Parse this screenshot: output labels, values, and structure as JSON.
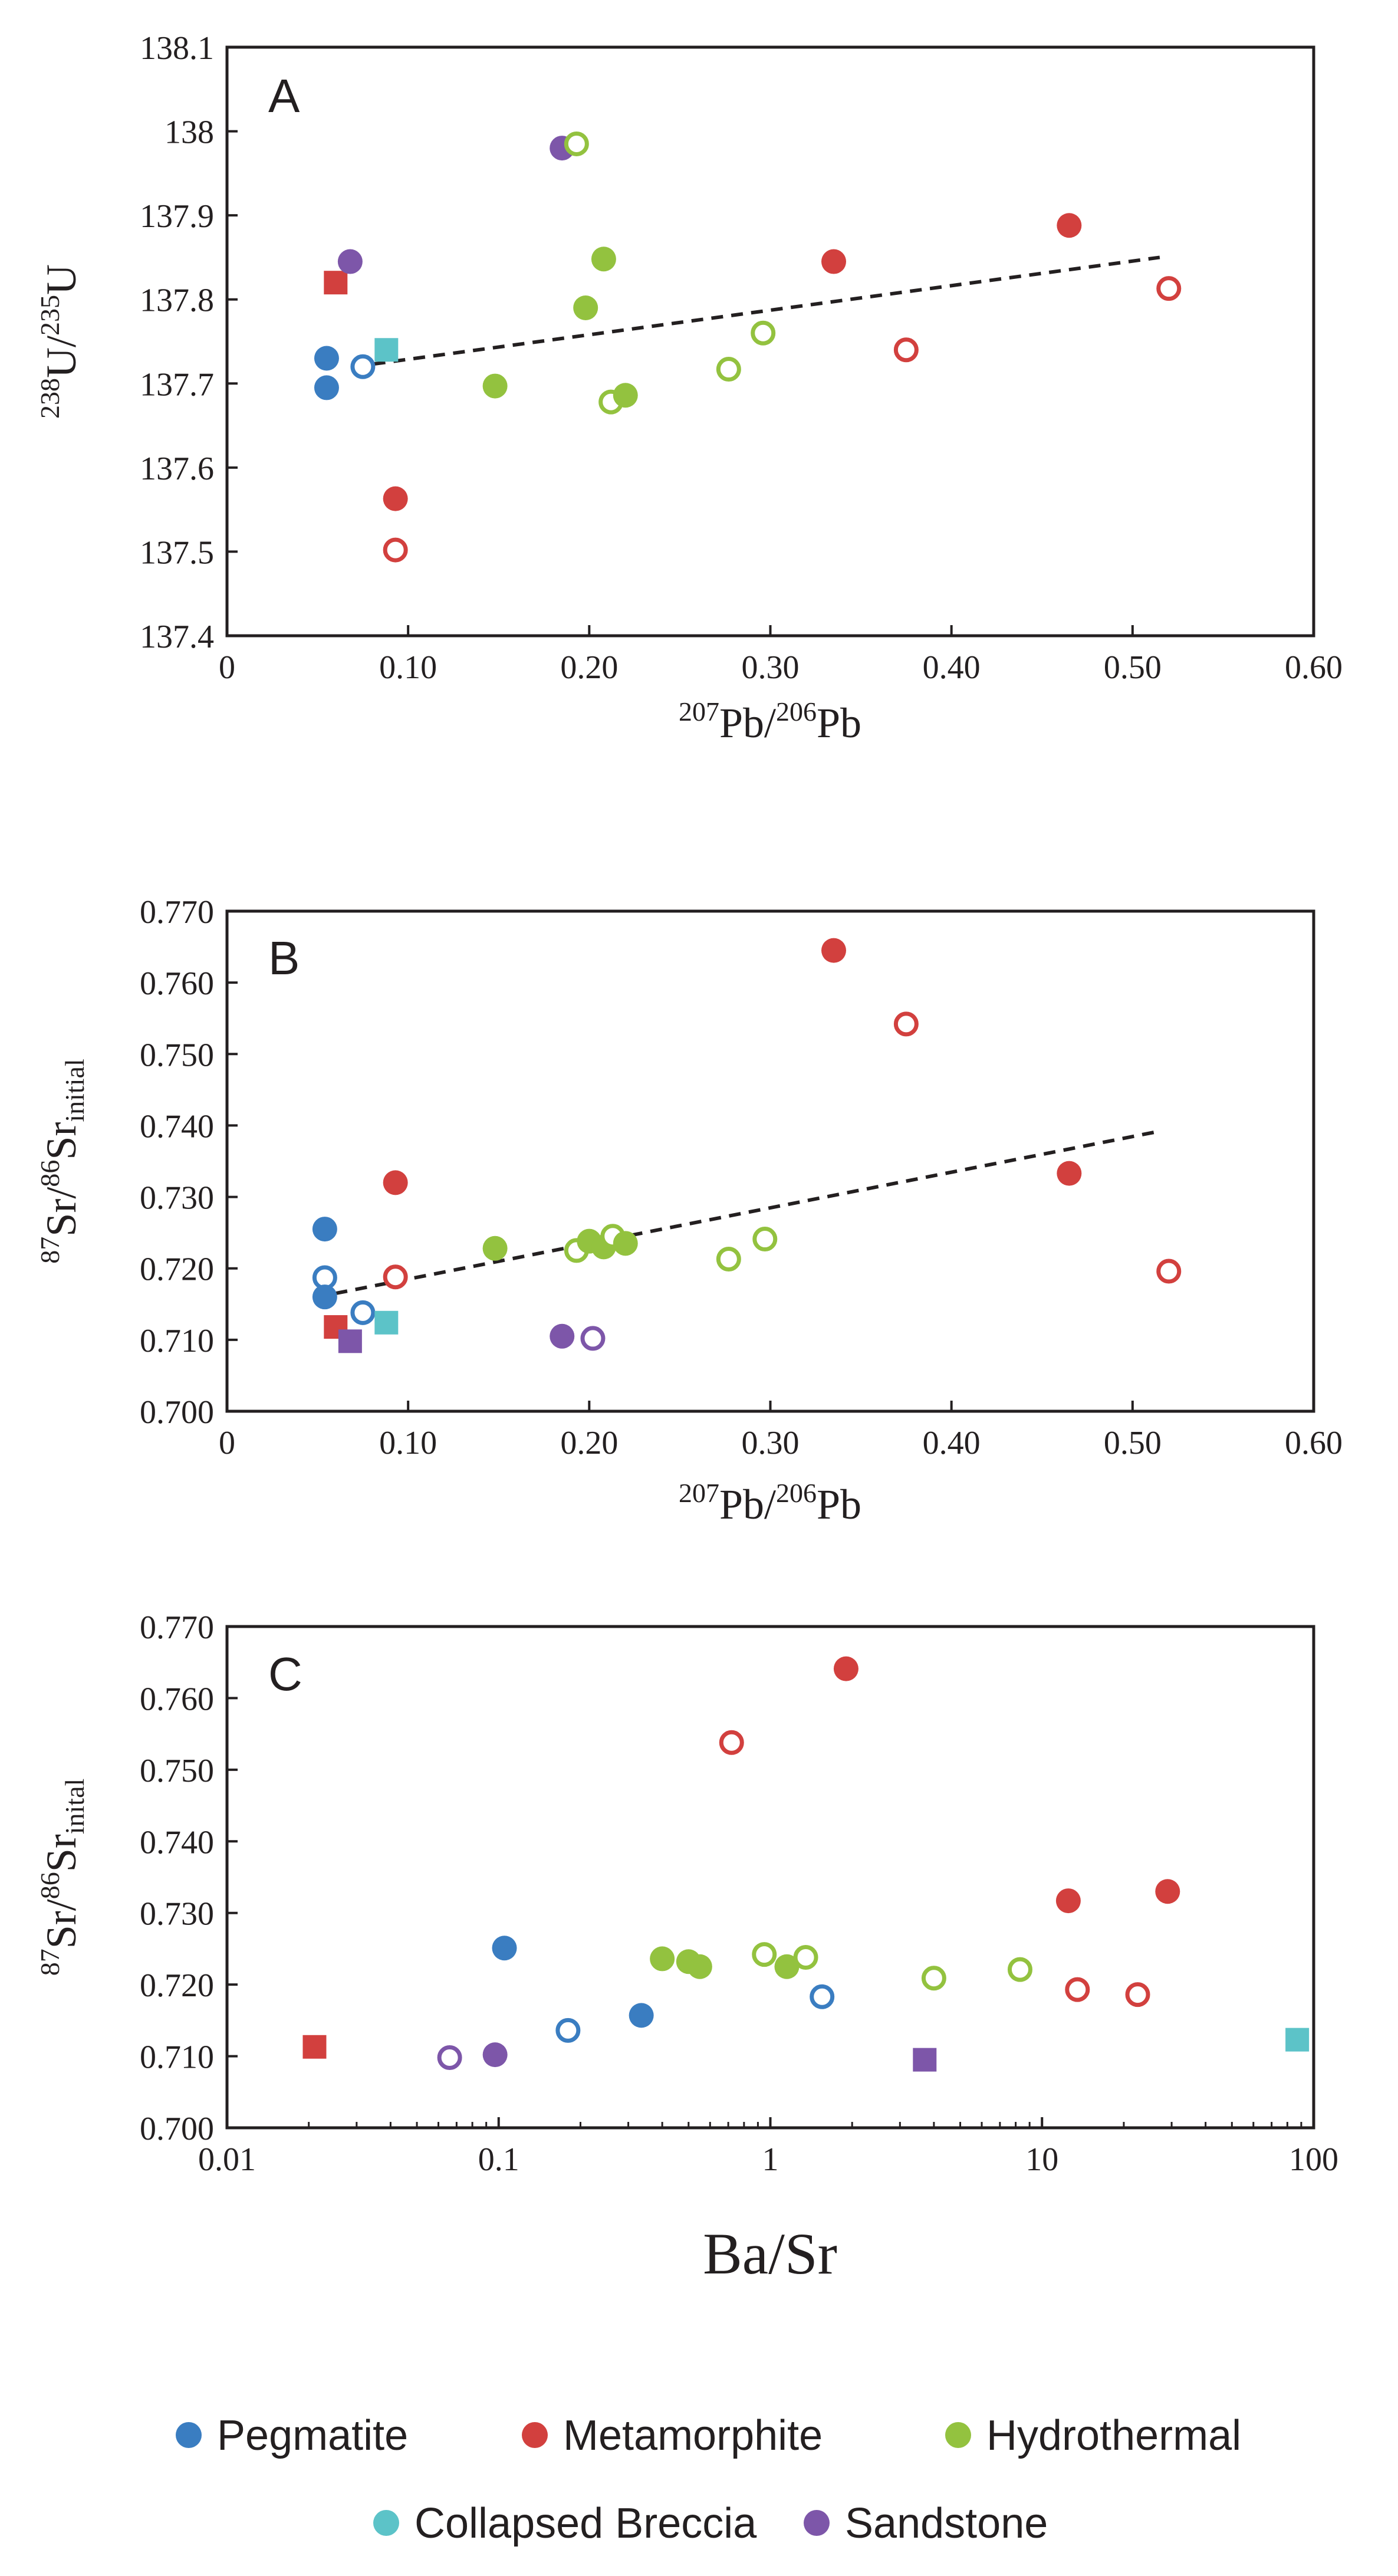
{
  "colors": {
    "pegmatite": "#3a7dc1",
    "metamorphite": "#d2403e",
    "hydrothermal": "#93c23f",
    "collapsed_breccia": "#5cc3c8",
    "sandstone": "#7d56a9"
  },
  "legend": [
    {
      "key": "pegmatite",
      "label": "Pegmatite"
    },
    {
      "key": "metamorphite",
      "label": "Metamorphite"
    },
    {
      "key": "hydrothermal",
      "label": "Hydrothermal"
    },
    {
      "key": "collapsed_breccia",
      "label": "Collapsed Breccia"
    },
    {
      "key": "sandstone",
      "label": "Sandstone"
    }
  ],
  "chart_data": [
    {
      "panel": "A",
      "type": "scatter",
      "xscale": "linear",
      "xlim": [
        0,
        0.6
      ],
      "ylim": [
        137.4,
        138.1
      ],
      "xticks": [
        "0",
        "0.10",
        "0.20",
        "0.30",
        "0.40",
        "0.50",
        "0.60"
      ],
      "yticks": [
        "137.4",
        "137.5",
        "137.6",
        "137.7",
        "137.8",
        "137.9",
        "138",
        "138.1"
      ],
      "xlabel": {
        "sup1": "207",
        "base1": "Pb/",
        "sup2": "206",
        "base2": "Pb"
      },
      "ylabel": {
        "sup1": "238",
        "base1": "U/",
        "sup2": "235",
        "base2": "U"
      },
      "trendline": {
        "x": [
          0.07,
          0.515
        ],
        "y": [
          137.72,
          137.85
        ]
      },
      "points": [
        {
          "series": "pegmatite",
          "shape": "circle",
          "filled": true,
          "x": 0.055,
          "y": 137.73
        },
        {
          "series": "pegmatite",
          "shape": "circle",
          "filled": true,
          "x": 0.055,
          "y": 137.695
        },
        {
          "series": "pegmatite",
          "shape": "circle",
          "filled": false,
          "x": 0.075,
          "y": 137.72
        },
        {
          "series": "metamorphite",
          "shape": "square",
          "filled": true,
          "x": 0.06,
          "y": 137.82
        },
        {
          "series": "metamorphite",
          "shape": "circle",
          "filled": true,
          "x": 0.093,
          "y": 137.563
        },
        {
          "series": "metamorphite",
          "shape": "circle",
          "filled": false,
          "x": 0.093,
          "y": 137.502
        },
        {
          "series": "metamorphite",
          "shape": "circle",
          "filled": true,
          "x": 0.335,
          "y": 137.845
        },
        {
          "series": "metamorphite",
          "shape": "circle",
          "filled": false,
          "x": 0.375,
          "y": 137.74
        },
        {
          "series": "metamorphite",
          "shape": "circle",
          "filled": true,
          "x": 0.465,
          "y": 137.888
        },
        {
          "series": "metamorphite",
          "shape": "circle",
          "filled": false,
          "x": 0.52,
          "y": 137.813
        },
        {
          "series": "collapsed_breccia",
          "shape": "square",
          "filled": true,
          "x": 0.088,
          "y": 137.74
        },
        {
          "series": "sandstone",
          "shape": "circle",
          "filled": true,
          "x": 0.068,
          "y": 137.845
        },
        {
          "series": "sandstone",
          "shape": "circle",
          "filled": true,
          "x": 0.185,
          "y": 137.98
        },
        {
          "series": "hydrothermal",
          "shape": "circle",
          "filled": false,
          "x": 0.193,
          "y": 137.985
        },
        {
          "series": "hydrothermal",
          "shape": "circle",
          "filled": true,
          "x": 0.208,
          "y": 137.848
        },
        {
          "series": "hydrothermal",
          "shape": "circle",
          "filled": true,
          "x": 0.198,
          "y": 137.79
        },
        {
          "series": "hydrothermal",
          "shape": "circle",
          "filled": true,
          "x": 0.148,
          "y": 137.697
        },
        {
          "series": "hydrothermal",
          "shape": "circle",
          "filled": false,
          "x": 0.212,
          "y": 137.678
        },
        {
          "series": "hydrothermal",
          "shape": "circle",
          "filled": true,
          "x": 0.22,
          "y": 137.686
        },
        {
          "series": "hydrothermal",
          "shape": "circle",
          "filled": false,
          "x": 0.277,
          "y": 137.717
        },
        {
          "series": "hydrothermal",
          "shape": "circle",
          "filled": false,
          "x": 0.296,
          "y": 137.76
        }
      ]
    },
    {
      "panel": "B",
      "type": "scatter",
      "xscale": "linear",
      "xlim": [
        0,
        0.6
      ],
      "ylim": [
        0.7,
        0.77
      ],
      "xticks": [
        "0",
        "0.10",
        "0.20",
        "0.30",
        "0.40",
        "0.50",
        "0.60"
      ],
      "yticks": [
        "0.700",
        "0.710",
        "0.720",
        "0.730",
        "0.740",
        "0.750",
        "0.760",
        "0.770"
      ],
      "xlabel": {
        "sup1": "207",
        "base1": "Pb/",
        "sup2": "206",
        "base2": "Pb"
      },
      "ylabel": {
        "sup1": "87",
        "base1": "Sr/",
        "sup2": "86",
        "base2": "Sr",
        "sub": "initial"
      },
      "trendline": {
        "x": [
          0.06,
          0.515
        ],
        "y": [
          0.7165,
          0.7392
        ]
      },
      "points": [
        {
          "series": "pegmatite",
          "shape": "circle",
          "filled": true,
          "x": 0.054,
          "y": 0.7255
        },
        {
          "series": "pegmatite",
          "shape": "circle",
          "filled": false,
          "x": 0.054,
          "y": 0.7187
        },
        {
          "series": "pegmatite",
          "shape": "circle",
          "filled": true,
          "x": 0.054,
          "y": 0.716
        },
        {
          "series": "pegmatite",
          "shape": "circle",
          "filled": false,
          "x": 0.075,
          "y": 0.7138
        },
        {
          "series": "metamorphite",
          "shape": "square",
          "filled": true,
          "x": 0.06,
          "y": 0.7118
        },
        {
          "series": "metamorphite",
          "shape": "circle",
          "filled": true,
          "x": 0.093,
          "y": 0.732
        },
        {
          "series": "metamorphite",
          "shape": "circle",
          "filled": false,
          "x": 0.093,
          "y": 0.7188
        },
        {
          "series": "metamorphite",
          "shape": "circle",
          "filled": true,
          "x": 0.335,
          "y": 0.7645
        },
        {
          "series": "metamorphite",
          "shape": "circle",
          "filled": false,
          "x": 0.375,
          "y": 0.7542
        },
        {
          "series": "metamorphite",
          "shape": "circle",
          "filled": true,
          "x": 0.465,
          "y": 0.7333
        },
        {
          "series": "metamorphite",
          "shape": "circle",
          "filled": false,
          "x": 0.52,
          "y": 0.7196
        },
        {
          "series": "collapsed_breccia",
          "shape": "square",
          "filled": true,
          "x": 0.088,
          "y": 0.7124
        },
        {
          "series": "sandstone",
          "shape": "square",
          "filled": true,
          "x": 0.068,
          "y": 0.7098
        },
        {
          "series": "sandstone",
          "shape": "circle",
          "filled": true,
          "x": 0.185,
          "y": 0.7105
        },
        {
          "series": "sandstone",
          "shape": "circle",
          "filled": false,
          "x": 0.202,
          "y": 0.7102
        },
        {
          "series": "hydrothermal",
          "shape": "circle",
          "filled": true,
          "x": 0.148,
          "y": 0.7228
        },
        {
          "series": "hydrothermal",
          "shape": "circle",
          "filled": false,
          "x": 0.193,
          "y": 0.7225
        },
        {
          "series": "hydrothermal",
          "shape": "circle",
          "filled": true,
          "x": 0.2,
          "y": 0.7238
        },
        {
          "series": "hydrothermal",
          "shape": "circle",
          "filled": true,
          "x": 0.208,
          "y": 0.723
        },
        {
          "series": "hydrothermal",
          "shape": "circle",
          "filled": false,
          "x": 0.213,
          "y": 0.7245
        },
        {
          "series": "hydrothermal",
          "shape": "circle",
          "filled": true,
          "x": 0.22,
          "y": 0.7235
        },
        {
          "series": "hydrothermal",
          "shape": "circle",
          "filled": false,
          "x": 0.277,
          "y": 0.7213
        },
        {
          "series": "hydrothermal",
          "shape": "circle",
          "filled": false,
          "x": 0.297,
          "y": 0.7241
        }
      ]
    },
    {
      "panel": "C",
      "type": "scatter",
      "xscale": "log",
      "xlim": [
        0.01,
        100
      ],
      "ylim": [
        0.7,
        0.77
      ],
      "xticks": [
        "0.01",
        "0.1",
        "1",
        "10",
        "100"
      ],
      "yticks": [
        "0.700",
        "0.710",
        "0.720",
        "0.730",
        "0.740",
        "0.750",
        "0.760",
        "0.770"
      ],
      "xlabel": {
        "text": "Ba/Sr"
      },
      "ylabel": {
        "sup1": "87",
        "base1": "Sr/",
        "sup2": "86",
        "base2": "Sr",
        "sub": "inital"
      },
      "points": [
        {
          "series": "metamorphite",
          "shape": "square",
          "filled": true,
          "x": 0.021,
          "y": 0.7113
        },
        {
          "series": "sandstone",
          "shape": "circle",
          "filled": false,
          "x": 0.066,
          "y": 0.7098
        },
        {
          "series": "sandstone",
          "shape": "circle",
          "filled": true,
          "x": 0.097,
          "y": 0.7102
        },
        {
          "series": "pegmatite",
          "shape": "circle",
          "filled": true,
          "x": 0.105,
          "y": 0.7251
        },
        {
          "series": "pegmatite",
          "shape": "circle",
          "filled": false,
          "x": 0.18,
          "y": 0.7136
        },
        {
          "series": "pegmatite",
          "shape": "circle",
          "filled": true,
          "x": 0.335,
          "y": 0.7157
        },
        {
          "series": "pegmatite",
          "shape": "circle",
          "filled": false,
          "x": 1.55,
          "y": 0.7183
        },
        {
          "series": "hydrothermal",
          "shape": "circle",
          "filled": true,
          "x": 0.4,
          "y": 0.7236
        },
        {
          "series": "hydrothermal",
          "shape": "circle",
          "filled": true,
          "x": 0.5,
          "y": 0.7232
        },
        {
          "series": "hydrothermal",
          "shape": "circle",
          "filled": true,
          "x": 0.55,
          "y": 0.7225
        },
        {
          "series": "hydrothermal",
          "shape": "circle",
          "filled": false,
          "x": 0.95,
          "y": 0.7242
        },
        {
          "series": "hydrothermal",
          "shape": "circle",
          "filled": true,
          "x": 1.15,
          "y": 0.7225
        },
        {
          "series": "hydrothermal",
          "shape": "circle",
          "filled": false,
          "x": 1.35,
          "y": 0.7238
        },
        {
          "series": "hydrothermal",
          "shape": "circle",
          "filled": false,
          "x": 4.0,
          "y": 0.7209
        },
        {
          "series": "hydrothermal",
          "shape": "circle",
          "filled": false,
          "x": 8.3,
          "y": 0.7221
        },
        {
          "series": "metamorphite",
          "shape": "circle",
          "filled": false,
          "x": 0.72,
          "y": 0.7538
        },
        {
          "series": "metamorphite",
          "shape": "circle",
          "filled": true,
          "x": 1.9,
          "y": 0.7641
        },
        {
          "series": "metamorphite",
          "shape": "circle",
          "filled": true,
          "x": 12.5,
          "y": 0.7317
        },
        {
          "series": "metamorphite",
          "shape": "circle",
          "filled": false,
          "x": 13.5,
          "y": 0.7193
        },
        {
          "series": "metamorphite",
          "shape": "circle",
          "filled": false,
          "x": 22.5,
          "y": 0.7186
        },
        {
          "series": "metamorphite",
          "shape": "circle",
          "filled": true,
          "x": 29.0,
          "y": 0.733
        },
        {
          "series": "sandstone",
          "shape": "square",
          "filled": true,
          "x": 3.7,
          "y": 0.7095
        },
        {
          "series": "collapsed_breccia",
          "shape": "square",
          "filled": true,
          "x": 87.0,
          "y": 0.7123
        }
      ]
    }
  ]
}
